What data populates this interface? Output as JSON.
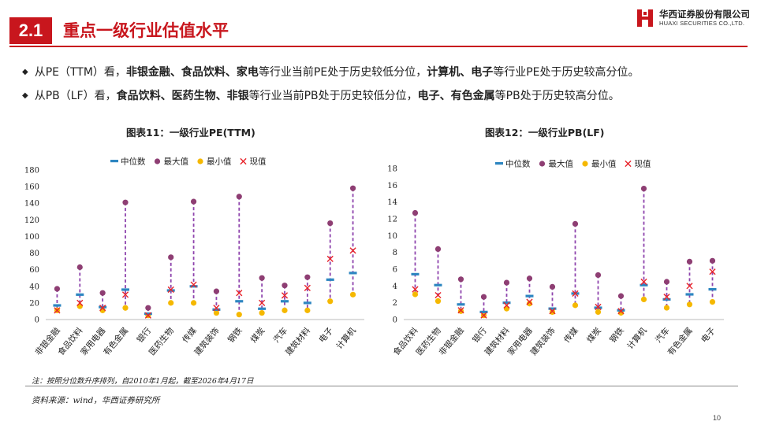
{
  "header": {
    "section_number": "2.1",
    "section_title": "重点一级行业估值水平",
    "logo_cn": "华西证券股份有限公司",
    "logo_en": "HUAXI SECURITIES CO.,LTD.",
    "accent_color": "#c8161d"
  },
  "bullets": [
    {
      "parts": [
        {
          "text": "从PE（TTM）看，",
          "bold": false
        },
        {
          "text": "非银金融、食品饮料、家电",
          "bold": true
        },
        {
          "text": "等行业当前PE处于历史较低分位，",
          "bold": false
        },
        {
          "text": "计算机、电子",
          "bold": true
        },
        {
          "text": "等行业PE处于历史较高分位。",
          "bold": false
        }
      ]
    },
    {
      "parts": [
        {
          "text": "从PB（LF）看，",
          "bold": false
        },
        {
          "text": "食品饮料、医药生物、非银",
          "bold": true
        },
        {
          "text": "等行业当前PB处于历史较低分位，",
          "bold": false
        },
        {
          "text": "电子、有色金属",
          "bold": true
        },
        {
          "text": "等PB处于历史较高分位。",
          "bold": false
        }
      ]
    }
  ],
  "chart_data": [
    {
      "type": "scatter",
      "title": "图表11：一级行业PE(TTM)",
      "legend": [
        "中位数",
        "最大值",
        "最小值",
        "现值"
      ],
      "legend_position": "top",
      "ylim": [
        0,
        180
      ],
      "yticks": [
        0,
        20,
        40,
        60,
        80,
        100,
        120,
        140,
        160,
        180
      ],
      "categories": [
        "非银金融",
        "食品饮料",
        "家用电器",
        "有色金属",
        "银行",
        "医药生物",
        "传媒",
        "建筑装饰",
        "钢铁",
        "煤炭",
        "汽车",
        "建筑材料",
        "电子",
        "计算机"
      ],
      "series": [
        {
          "name": "中位数",
          "values": [
            17,
            30,
            15,
            36,
            7,
            35,
            40,
            12,
            22,
            13,
            22,
            20,
            48,
            56
          ]
        },
        {
          "name": "最大值",
          "values": [
            37,
            63,
            32,
            141,
            14,
            75,
            142,
            34,
            148,
            50,
            41,
            51,
            116,
            158
          ]
        },
        {
          "name": "最小值",
          "values": [
            11,
            16,
            11,
            14,
            5,
            20,
            20,
            8,
            6,
            8,
            11,
            11,
            22,
            30
          ]
        },
        {
          "name": "现值",
          "values": [
            11,
            20,
            14,
            30,
            5,
            36,
            42,
            14,
            32,
            20,
            29,
            38,
            73,
            83
          ]
        }
      ],
      "colors": {
        "median": "#2e86c1",
        "max": "#8e3e73",
        "min": "#f5b800",
        "current": "#e8232a",
        "range": "#8e44ad"
      },
      "grid": false
    },
    {
      "type": "scatter",
      "title": "图表12：一级行业PB(LF)",
      "legend": [
        "中位数",
        "最大值",
        "最小值",
        "现值"
      ],
      "legend_position": "top",
      "ylim": [
        0,
        18
      ],
      "yticks": [
        0,
        2,
        4,
        6,
        8,
        10,
        12,
        14,
        16,
        18
      ],
      "categories": [
        "食品饮料",
        "医药生物",
        "非银金融",
        "银行",
        "建筑材料",
        "家用电器",
        "建筑装饰",
        "传媒",
        "煤炭",
        "钢铁",
        "计算机",
        "汽车",
        "有色金属",
        "电子"
      ],
      "series": [
        {
          "name": "中位数",
          "values": [
            5.4,
            4.1,
            1.8,
            0.9,
            2.0,
            2.8,
            1.3,
            3.1,
            1.4,
            1.1,
            4.1,
            2.4,
            3.0,
            3.6
          ]
        },
        {
          "name": "最大值",
          "values": [
            12.7,
            8.4,
            4.8,
            2.7,
            4.4,
            4.9,
            3.9,
            11.4,
            5.3,
            2.8,
            15.6,
            4.5,
            6.9,
            7.0
          ]
        },
        {
          "name": "最小值",
          "values": [
            3.0,
            2.2,
            1.0,
            0.5,
            1.3,
            1.9,
            0.9,
            1.7,
            0.9,
            0.8,
            2.4,
            1.4,
            1.8,
            2.1
          ]
        },
        {
          "name": "现值",
          "values": [
            3.6,
            2.9,
            1.1,
            0.5,
            1.7,
            2.1,
            1.0,
            3.1,
            1.5,
            1.0,
            4.5,
            2.7,
            4.0,
            5.7
          ]
        }
      ],
      "colors": {
        "median": "#2e86c1",
        "max": "#8e3e73",
        "min": "#f5b800",
        "current": "#e8232a",
        "range": "#8e44ad"
      },
      "grid": false
    }
  ],
  "footer": {
    "note": "注：按照分位数升序排列，自2010年1月起，截至2026年4月17日",
    "source": "资料来源：wind，华西证券研究所",
    "page_number": "10"
  }
}
